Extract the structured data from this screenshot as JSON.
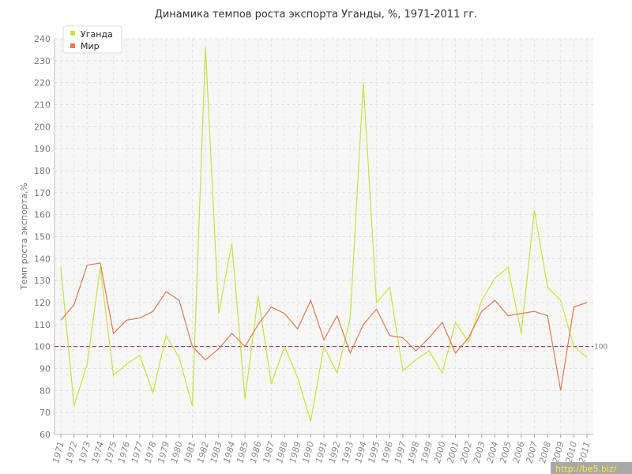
{
  "chart_data": {
    "type": "line",
    "title": "Динамика темпов роста экспорта Уганды, %, 1971-2011 гг.",
    "ylabel": "Темп роста экспорта,%",
    "xlabel": "",
    "ylim": [
      60,
      240
    ],
    "yticks": [
      60,
      70,
      80,
      90,
      100,
      110,
      120,
      130,
      140,
      150,
      160,
      170,
      180,
      190,
      200,
      210,
      220,
      230,
      240
    ],
    "x": [
      1971,
      1972,
      1973,
      1974,
      1975,
      1976,
      1977,
      1978,
      1979,
      1980,
      1981,
      1982,
      1983,
      1984,
      1985,
      1986,
      1987,
      1988,
      1989,
      1990,
      1991,
      1992,
      1993,
      1994,
      1995,
      1996,
      1997,
      1998,
      1999,
      2000,
      2001,
      2002,
      2003,
      2004,
      2005,
      2006,
      2007,
      2008,
      2009,
      2010,
      2011
    ],
    "x_labels": [
      "1971",
      "1972",
      "1973",
      "1974",
      "1975",
      "1976",
      "1977",
      "1978",
      "1979",
      "1980",
      "1981",
      "1982",
      "1983",
      "1984",
      "1985",
      "1986",
      "1987",
      "1988",
      "1989",
      "1990",
      "1991",
      "1992",
      "1993",
      "1994",
      "1995",
      "1996",
      "1997",
      "1998",
      "1999",
      "2000",
      "2001",
      "2002",
      "2003",
      "2004",
      "2005",
      "2006",
      "2007",
      "2008",
      "2009",
      "2010",
      "2011"
    ],
    "series": [
      {
        "name": "Уганда",
        "color": "#c6e04a",
        "values": [
          136,
          73,
          92,
          136,
          87,
          92,
          96,
          79,
          105,
          95,
          73,
          236,
          115,
          147,
          76,
          123,
          83,
          100,
          86,
          66,
          100,
          88,
          113,
          220,
          120,
          127,
          89,
          94,
          98,
          88,
          111,
          102,
          121,
          131,
          136,
          106,
          162,
          127,
          121,
          100,
          95
        ]
      },
      {
        "name": "Мир",
        "color": "#e07a4f",
        "values": [
          112,
          119,
          137,
          138,
          106,
          112,
          113,
          116,
          125,
          121,
          100,
          94,
          99,
          106,
          100,
          110,
          118,
          115,
          108,
          121,
          103,
          114,
          97,
          110,
          117,
          105,
          104,
          98,
          104,
          111,
          97,
          104,
          116,
          121,
          114,
          115,
          116,
          114,
          80,
          118,
          120
        ]
      }
    ],
    "reference_line": {
      "value": 100,
      "label": "100",
      "color": "#9b2c3f"
    },
    "grid": true,
    "legend_position": "top-left"
  },
  "watermark": "http://be5.biz/"
}
